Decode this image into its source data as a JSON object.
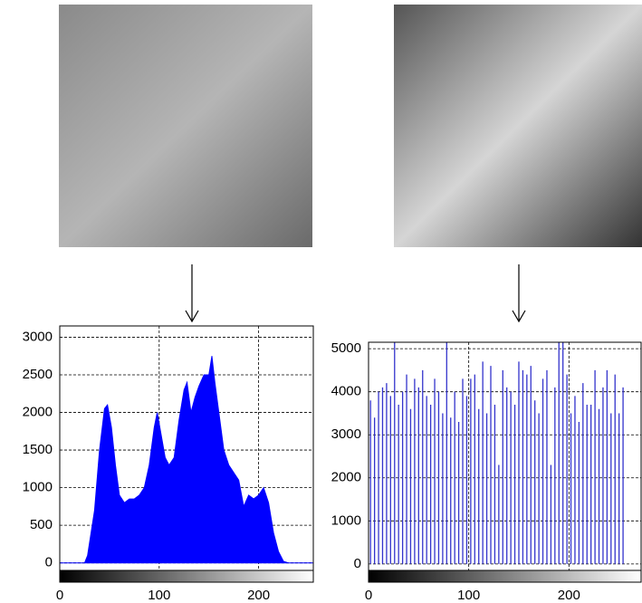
{
  "chart_data": [
    {
      "type": "area",
      "color": "#0000ff",
      "grid": true,
      "x": [
        0,
        25,
        28,
        35,
        40,
        45,
        48,
        52,
        56,
        60,
        65,
        70,
        75,
        80,
        85,
        90,
        95,
        98,
        102,
        106,
        110,
        115,
        120,
        125,
        128,
        132,
        136,
        140,
        145,
        150,
        153,
        156,
        160,
        165,
        170,
        175,
        180,
        185,
        190,
        195,
        200,
        205,
        210,
        215,
        220,
        225,
        230,
        255
      ],
      "values": [
        0,
        0,
        100,
        700,
        1500,
        2050,
        2100,
        1800,
        1300,
        900,
        800,
        850,
        850,
        900,
        1000,
        1300,
        1800,
        2000,
        1700,
        1400,
        1300,
        1400,
        1900,
        2300,
        2400,
        2000,
        2200,
        2350,
        2500,
        2500,
        2750,
        2400,
        2000,
        1500,
        1300,
        1200,
        1100,
        750,
        900,
        850,
        900,
        1000,
        800,
        400,
        150,
        20,
        0,
        0
      ],
      "xlim": [
        0,
        255
      ],
      "xticks": [
        0,
        100,
        200
      ],
      "ylim": [
        -100,
        3150
      ],
      "yticks": [
        0,
        500,
        1000,
        1500,
        2000,
        2500,
        3000
      ]
    },
    {
      "type": "stem",
      "color": "#3333cc",
      "grid": true,
      "x": [
        2,
        6,
        10,
        14,
        18,
        22,
        26,
        30,
        34,
        38,
        42,
        46,
        50,
        54,
        58,
        62,
        66,
        70,
        74,
        78,
        82,
        86,
        90,
        94,
        98,
        102,
        106,
        110,
        114,
        118,
        122,
        126,
        130,
        134,
        138,
        142,
        146,
        150,
        154,
        158,
        162,
        166,
        170,
        174,
        178,
        182,
        186,
        190,
        194,
        198,
        202,
        206,
        210,
        214,
        218,
        222,
        226,
        230,
        234,
        238,
        242,
        246,
        250,
        254
      ],
      "values": [
        3800,
        3400,
        4000,
        4100,
        4200,
        3900,
        5200,
        3700,
        4000,
        4400,
        3600,
        4300,
        4100,
        4500,
        3900,
        3700,
        4300,
        4000,
        3500,
        5200,
        3400,
        4000,
        3300,
        4300,
        3900,
        4300,
        4400,
        3600,
        4700,
        3500,
        4600,
        3700,
        2300,
        4500,
        4100,
        4000,
        3700,
        4700,
        4500,
        4400,
        4600,
        3800,
        3500,
        4300,
        4500,
        2300,
        4100,
        5200,
        5200,
        4400,
        3500,
        3900,
        3300,
        4200,
        3700,
        3700,
        4500,
        3600,
        4100,
        4500,
        3500,
        4400,
        3500,
        4100
      ],
      "xlim": [
        0,
        272
      ],
      "xticks": [
        0,
        100,
        200
      ],
      "ylim": [
        -150,
        5150
      ],
      "yticks": [
        0,
        1000,
        2000,
        3000,
        4000,
        5000
      ]
    }
  ]
}
